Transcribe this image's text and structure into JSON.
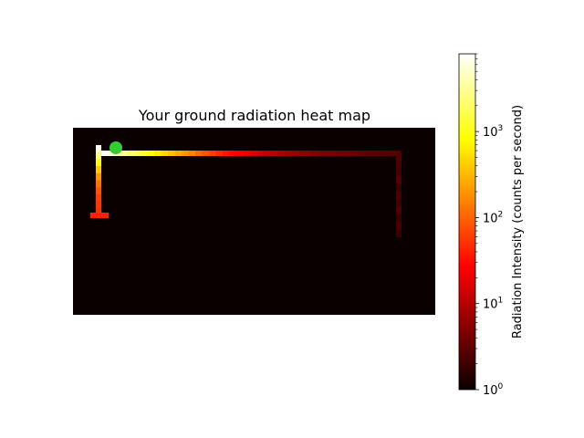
{
  "chart_data": [
    {
      "type": "heatmap",
      "title": "Your ground radiation heat map",
      "xlabel": "",
      "ylabel": "",
      "axes_visible": false,
      "background_color": "#0b0000",
      "marker": {
        "shape": "circle",
        "color": "#33cc33",
        "position": "top-left end of path"
      },
      "path_segments": [
        {
          "name": "top horizontal run (left to right)",
          "values": [
            8000,
            6000,
            4500,
            3500,
            2500,
            1800,
            1300,
            900,
            650,
            480,
            360,
            270,
            200,
            150,
            110,
            80,
            60,
            45,
            35,
            28,
            22,
            18,
            15,
            12,
            10,
            9,
            8,
            7,
            6,
            5.5,
            5,
            4.5,
            4.2,
            4,
            3.8,
            3.6,
            3.4,
            3.2,
            3.0,
            2.9,
            2.8,
            2.7,
            2.6,
            2.5
          ]
        },
        {
          "name": "left vertical run (top to bottom)",
          "values": [
            6000,
            2500,
            900,
            400,
            200,
            120,
            80,
            60,
            55,
            50
          ]
        },
        {
          "name": "left bottom stub",
          "values": [
            40,
            40,
            40
          ]
        },
        {
          "name": "right vertical run (top to bottom)",
          "values": [
            2.5,
            2.3,
            2.0,
            2.6,
            1.8,
            2.2,
            1.9,
            2.4,
            1.7,
            2.1,
            1.8
          ]
        }
      ]
    },
    {
      "type": "colorbar",
      "label": "Radiation Intensity (counts per second)",
      "scale": "log",
      "range": [
        1,
        8000
      ],
      "tick_labels": [
        "10^0",
        "10^1",
        "10^2",
        "10^3"
      ],
      "colormap": "hot"
    }
  ],
  "colors": {
    "hot_stops": [
      "#0b0000",
      "#ff0000",
      "#ffff00",
      "#ffffff"
    ],
    "marker": "#33cc33"
  }
}
